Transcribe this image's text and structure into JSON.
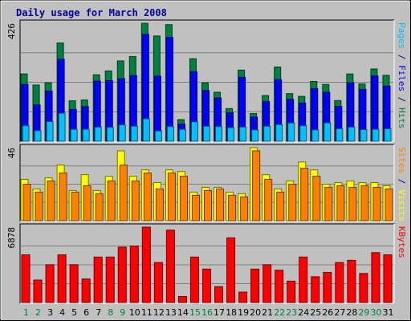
{
  "chart_data": {
    "type": "bar",
    "title": "Daily usage for March 2008",
    "categories": [
      "1",
      "2",
      "3",
      "4",
      "5",
      "6",
      "7",
      "8",
      "9",
      "10",
      "11",
      "12",
      "13",
      "14",
      "15",
      "16",
      "17",
      "18",
      "19",
      "20",
      "21",
      "22",
      "23",
      "24",
      "25",
      "26",
      "27",
      "28",
      "29",
      "30",
      "31"
    ],
    "weekend_days": [
      "1",
      "2",
      "8",
      "9",
      "15",
      "16",
      "22",
      "23",
      "29",
      "30"
    ],
    "panels": [
      {
        "name": "hits-files-pages",
        "max_label": "426",
        "ymax": 426,
        "right_label": [
          {
            "text": "Pages",
            "color": "#00c0ff"
          },
          {
            "text": " / ",
            "color": "#000080"
          },
          {
            "text": "Files",
            "color": "#0000ff"
          },
          {
            "text": " / ",
            "color": "#000080"
          },
          {
            "text": "Hits",
            "color": "#008040"
          }
        ],
        "series": [
          {
            "name": "Hits",
            "color": "#008040",
            "values": [
              243,
              203,
              211,
              355,
              146,
              149,
              240,
              254,
              290,
              306,
              426,
              380,
              421,
              78,
              298,
              211,
              177,
              118,
              257,
              100,
              165,
              268,
              172,
              162,
              216,
              205,
              147,
              243,
              207,
              261,
              238
            ]
          },
          {
            "name": "Files",
            "color": "#0000ff",
            "values": [
              205,
              131,
              181,
              296,
              115,
              125,
              217,
              219,
              226,
              237,
              386,
              235,
              375,
              62,
              251,
              183,
              156,
              103,
              231,
              87,
              143,
              222,
              151,
              138,
              190,
              177,
              126,
              211,
              187,
              236,
              199
            ]
          },
          {
            "name": "Pages",
            "color": "#00c0ff",
            "values": [
              56,
              38,
              71,
              101,
              43,
              43,
              51,
              50,
              59,
              54,
              81,
              37,
              53,
              43,
              70,
              54,
              53,
              49,
              51,
              41,
              54,
              60,
              66,
              56,
              41,
              66,
              45,
              51,
              42,
              43,
              45
            ]
          }
        ]
      },
      {
        "name": "visits-sites",
        "max_label": "46",
        "ymax": 46,
        "right_label": [
          {
            "text": "Sites",
            "color": "#ff8000"
          },
          {
            "text": " / ",
            "color": "#000080"
          },
          {
            "text": "Visits",
            "color": "#ffff00"
          }
        ],
        "series": [
          {
            "name": "Visits",
            "color": "#ffff00",
            "values": [
              26,
              20,
              27,
              35,
              19,
              29,
              19,
              28,
              44,
              28,
              32,
              24,
              32,
              31,
              18,
              21,
              21,
              18,
              17,
              46,
              29,
              20,
              25,
              37,
              32,
              23,
              24,
              25,
              24,
              24,
              22
            ]
          },
          {
            "name": "Sites",
            "color": "#ff8000",
            "values": [
              23,
              18,
              25,
              30,
              18,
              22,
              17,
              25,
              35,
              25,
              30,
              20,
              30,
              28,
              16,
              19,
              20,
              16,
              15,
              44,
              26,
              18,
              23,
              33,
              28,
              21,
              22,
              21,
              22,
              21,
              20
            ]
          }
        ]
      },
      {
        "name": "kbytes",
        "max_label": "6878",
        "ymax": 6878,
        "right_label": [
          {
            "text": "KBytes",
            "color": "#ff0000"
          }
        ],
        "series": [
          {
            "name": "KBytes",
            "color": "#ff0000",
            "values": [
              4350,
              2050,
              3450,
              4350,
              3450,
              2150,
              4150,
              4150,
              5050,
              5150,
              6878,
              3650,
              6600,
              550,
              4150,
              3050,
              1450,
              5900,
              950,
              3050,
              3450,
              2950,
              1950,
              4150,
              2350,
              2750,
              3650,
              3850,
              2650,
              4550,
              4350
            ]
          }
        ]
      }
    ]
  }
}
